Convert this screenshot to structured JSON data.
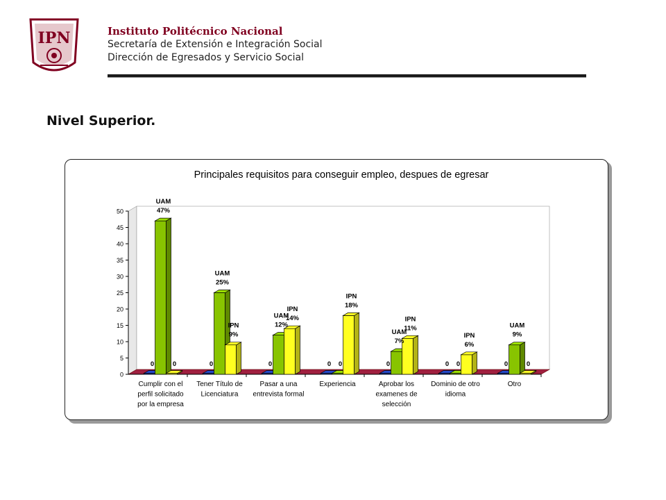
{
  "header": {
    "institution": "Instituto Politécnico Nacional",
    "line1": "Secretaría de Extensión e Integración Social",
    "line2": "Dirección de Egresados y Servicio Social"
  },
  "logo": {
    "text": "IPN",
    "icon": "ipn-logo-icon",
    "color": "#800020"
  },
  "section_title": "Nivel Superior.",
  "chart_data": {
    "type": "bar",
    "title": "Principales requisitos para conseguir empleo, despues de egresar",
    "categories": [
      [
        "Cumplir con el",
        "perfil solicitado",
        "por la empresa"
      ],
      [
        "Tener Título de",
        "Licenciatura"
      ],
      [
        "Pasar a una",
        "entrevista formal"
      ],
      [
        "Experiencia"
      ],
      [
        "Aprobar los",
        "examenes de",
        "selección"
      ],
      [
        "Dominio de otro",
        "idioma"
      ],
      [
        "Otro"
      ]
    ],
    "series": [
      {
        "color": "#2040b0",
        "values": [
          0,
          0,
          0,
          0,
          0,
          0,
          0
        ]
      },
      {
        "color": "#88c400",
        "values": [
          47,
          25,
          12,
          0,
          7,
          0,
          9
        ]
      },
      {
        "color": "#ffff20",
        "values": [
          0,
          9,
          14,
          18,
          11,
          6,
          0
        ]
      }
    ],
    "data_labels": [
      [
        {
          "s": 0,
          "lines": [
            "0"
          ]
        },
        {
          "s": 1,
          "lines": [
            "UAM",
            "47%"
          ]
        },
        {
          "s": 2,
          "lines": [
            "0"
          ]
        }
      ],
      [
        {
          "s": 0,
          "lines": [
            "0"
          ]
        },
        {
          "s": 1,
          "lines": [
            "UAM",
            "25%"
          ]
        },
        {
          "s": 2,
          "lines": [
            "IPN",
            "9%"
          ]
        }
      ],
      [
        {
          "s": 0,
          "lines": [
            "0"
          ]
        },
        {
          "s": 1,
          "lines": [
            "UAM",
            "12%"
          ]
        },
        {
          "s": 2,
          "lines": [
            "IPN",
            "14%"
          ]
        }
      ],
      [
        {
          "s": 0,
          "lines": [
            "0"
          ]
        },
        {
          "s": 1,
          "lines": [
            "0"
          ]
        },
        {
          "s": 2,
          "lines": [
            "IPN",
            "18%"
          ]
        }
      ],
      [
        {
          "s": 0,
          "lines": [
            "0"
          ]
        },
        {
          "s": 1,
          "lines": [
            "UAM",
            "7%"
          ]
        },
        {
          "s": 2,
          "lines": [
            "IPN",
            "11%"
          ]
        }
      ],
      [
        {
          "s": 0,
          "lines": [
            "0"
          ]
        },
        {
          "s": 1,
          "lines": [
            "0"
          ]
        },
        {
          "s": 2,
          "lines": [
            "IPN",
            "6%"
          ]
        }
      ],
      [
        {
          "s": 0,
          "lines": [
            "0"
          ]
        },
        {
          "s": 1,
          "lines": [
            "UAM",
            "9%"
          ]
        },
        {
          "s": 2,
          "lines": [
            "0"
          ]
        }
      ]
    ],
    "ylim": [
      0,
      50
    ],
    "yticks": [
      0,
      5,
      10,
      15,
      20,
      25,
      30,
      35,
      40,
      45,
      50
    ],
    "xlabel": "",
    "ylabel": "",
    "grid": false,
    "legend": "none",
    "floor_color": "#a02040"
  }
}
